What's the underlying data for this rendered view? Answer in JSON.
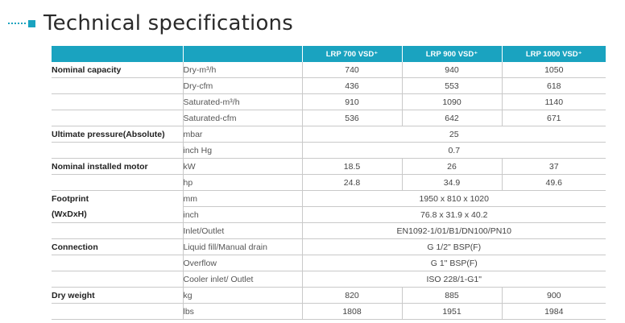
{
  "title": "Technical specifications",
  "models": [
    "LRP 700 VSD⁺",
    "LRP 900 VSD⁺",
    "LRP 1000 VSD⁺"
  ],
  "rows": [
    {
      "cat": "Nominal capacity",
      "unit": "Dry-m³/h",
      "values": [
        "740",
        "940",
        "1050"
      ]
    },
    {
      "cat": "",
      "unit": "Dry-cfm",
      "values": [
        "436",
        "553",
        "618"
      ]
    },
    {
      "cat": "",
      "unit": "Saturated-m³/h",
      "values": [
        "910",
        "1090",
        "1140"
      ]
    },
    {
      "cat": "",
      "unit": "Saturated-cfm",
      "values": [
        "536",
        "642",
        "671"
      ]
    },
    {
      "cat": "Ultimate pressure(Absolute)",
      "unit": "mbar",
      "span": "25"
    },
    {
      "cat": "",
      "unit": "inch Hg",
      "span": "0.7"
    },
    {
      "cat": "Nominal installed motor",
      "unit": "kW",
      "values": [
        "18.5",
        "26",
        "37"
      ]
    },
    {
      "cat": "",
      "unit": "hp",
      "values": [
        "24.8",
        "34.9",
        "49.6"
      ]
    },
    {
      "cat": "Footprint",
      "unit": "mm",
      "span": "1950 x 810 x 1020",
      "noline": true
    },
    {
      "cat": "(WxDxH)",
      "unit": "inch",
      "span": "76.8 x 31.9 x 40.2"
    },
    {
      "cat": "",
      "unit": "Inlet/Outlet",
      "span": "EN1092-1/01/B1/DN100/PN10"
    },
    {
      "cat": "Connection",
      "unit": "Liquid fill/Manual drain",
      "span": "G 1/2\" BSP(F)"
    },
    {
      "cat": "",
      "unit": "Overflow",
      "span": "G 1\" BSP(F)"
    },
    {
      "cat": "",
      "unit": "Cooler inlet/ Outlet",
      "span": "ISO 228/1-G1\""
    },
    {
      "cat": "Dry weight",
      "unit": "kg",
      "values": [
        "820",
        "885",
        "900"
      ]
    },
    {
      "cat": "",
      "unit": "lbs",
      "values": [
        "1808",
        "1951",
        "1984"
      ]
    }
  ]
}
